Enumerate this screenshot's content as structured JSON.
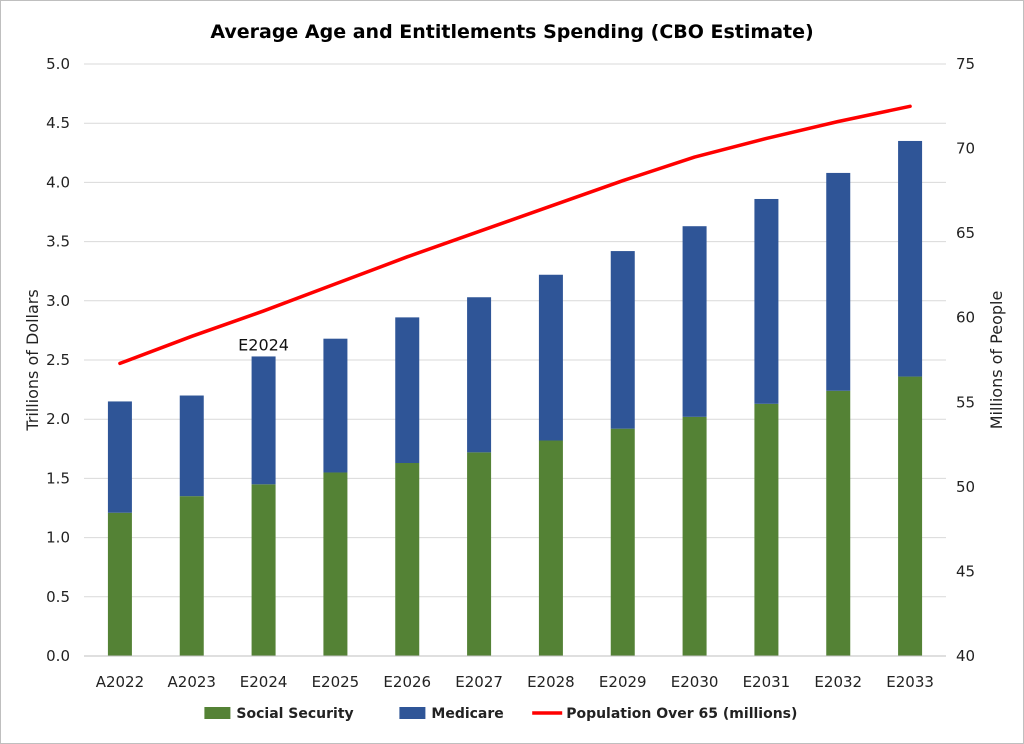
{
  "chart_data": {
    "type": "bar",
    "title": "Average Age and Entitlements Spending (CBO Estimate)",
    "ylabel": "Trillions of Dollars",
    "y2label": "Millions of People",
    "ylim": [
      0,
      5
    ],
    "y2lim": [
      40,
      75
    ],
    "yticks": [
      "0.0",
      "0.5",
      "1.0",
      "1.5",
      "2.0",
      "2.5",
      "3.0",
      "3.5",
      "4.0",
      "4.5",
      "5.0"
    ],
    "y2ticks": [
      "40",
      "45",
      "50",
      "55",
      "60",
      "65",
      "70",
      "75"
    ],
    "categories": [
      "A2022",
      "A2023",
      "E2024",
      "E2025",
      "E2026",
      "E2027",
      "E2028",
      "E2029",
      "E2030",
      "E2031",
      "E2032",
      "E2033"
    ],
    "series": [
      {
        "name": "Social Security",
        "kind": "stacked-bar",
        "color": "#548235",
        "values": [
          1.21,
          1.35,
          1.45,
          1.55,
          1.63,
          1.72,
          1.82,
          1.92,
          2.02,
          2.13,
          2.24,
          2.36
        ]
      },
      {
        "name": "Medicare",
        "kind": "stacked-bar",
        "color": "#2F5597",
        "values": [
          0.94,
          0.85,
          1.08,
          1.13,
          1.23,
          1.31,
          1.4,
          1.5,
          1.61,
          1.73,
          1.84,
          1.99
        ]
      },
      {
        "name": "Population Over 65 (millions)",
        "kind": "line",
        "axis": "right",
        "color": "#FF0000",
        "values": [
          57.3,
          58.9,
          60.4,
          62.0,
          63.6,
          65.1,
          66.6,
          68.1,
          69.5,
          70.6,
          71.6,
          72.5
        ]
      }
    ],
    "annotations": [
      {
        "text": "E2024",
        "category": "E2024"
      }
    ],
    "grid": true,
    "legend": "bottom"
  }
}
